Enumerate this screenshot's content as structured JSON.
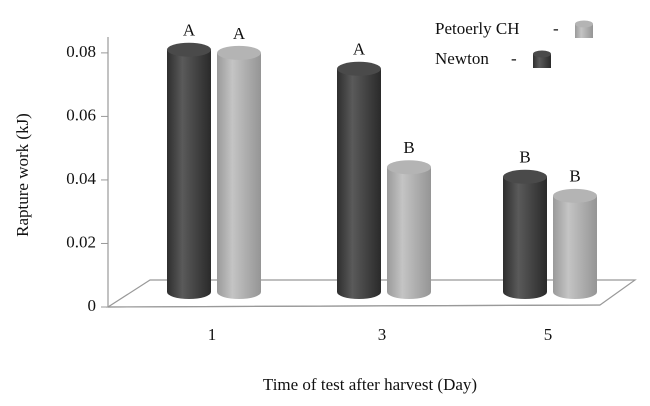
{
  "chart_data": {
    "type": "bar",
    "x_label": "Time of test after harvest (Day)",
    "y_label": "Rapture work (kJ)",
    "categories": [
      "1",
      "3",
      "5"
    ],
    "series": [
      {
        "name": "Newton",
        "color": "#4a4a4a",
        "values": [
          0.081,
          0.075,
          0.041
        ],
        "annotations": [
          "A",
          "A",
          "B"
        ]
      },
      {
        "name": "Petoerly CH",
        "color": "#b4b4b4",
        "values": [
          0.08,
          0.044,
          0.035
        ],
        "annotations": [
          "A",
          "B",
          "B"
        ]
      }
    ],
    "legend_order": [
      1,
      0
    ],
    "ylim": [
      0,
      0.085
    ],
    "yticks": [
      0,
      0.02,
      0.04,
      0.06,
      0.08
    ]
  }
}
